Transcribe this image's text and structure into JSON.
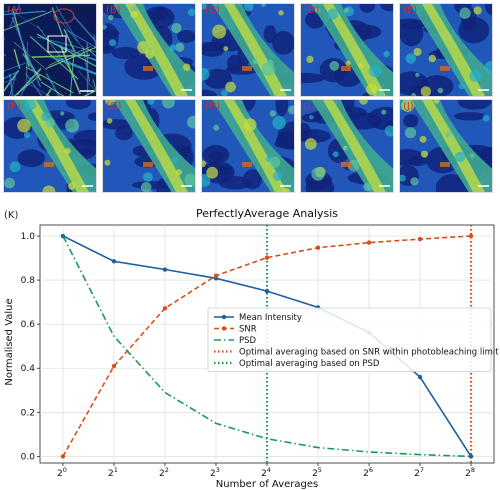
{
  "panels": [
    {
      "label": "(A)"
    },
    {
      "label": "(B)"
    },
    {
      "label": "(C)"
    },
    {
      "label": "(D)"
    },
    {
      "label": "(E)"
    },
    {
      "label": "(F)"
    },
    {
      "label": "(G)"
    },
    {
      "label": "(H)"
    },
    {
      "label": "(I)"
    },
    {
      "label": "(J)"
    }
  ],
  "chart_label": "(K)",
  "chart_data": {
    "type": "line",
    "title": "PerfectlyAverage Analysis",
    "xlabel": "Number of Averages",
    "ylabel": "Normalised Value",
    "x_ticks": [
      "0",
      "1",
      "2",
      "3",
      "4",
      "5",
      "6",
      "7",
      "8"
    ],
    "x_tick_base": "2",
    "x": [
      0,
      1,
      2,
      3,
      4,
      5,
      6,
      7,
      8
    ],
    "ylim": [
      -0.03,
      1.05
    ],
    "y_ticks": [
      "0.0",
      "0.2",
      "0.4",
      "0.6",
      "0.8",
      "1.0"
    ],
    "grid": true,
    "legend_position": "center-right",
    "series": [
      {
        "name": "Mean Intensity",
        "color": "#1f5f9e",
        "style": "solid-dot",
        "values": [
          1.0,
          0.885,
          0.848,
          0.808,
          0.75,
          0.676,
          0.562,
          0.36,
          0.0
        ]
      },
      {
        "name": "SNR",
        "color": "#d4521a",
        "style": "dashed-dot",
        "values": [
          0.0,
          0.41,
          0.672,
          0.82,
          0.902,
          0.947,
          0.97,
          0.986,
          1.0
        ]
      },
      {
        "name": "PSD",
        "color": "#1a9a55",
        "style": "dashdot",
        "values": [
          1.0,
          0.545,
          0.29,
          0.15,
          0.08,
          0.04,
          0.02,
          0.008,
          0.0
        ]
      }
    ],
    "vlines": [
      {
        "name": "Optimal averaging based on SNR within photobleaching limit",
        "color": "#d4521a",
        "x": 8
      },
      {
        "name": "Optimal averaging based on PSD",
        "color": "#1a9a55",
        "x": 4
      }
    ]
  }
}
